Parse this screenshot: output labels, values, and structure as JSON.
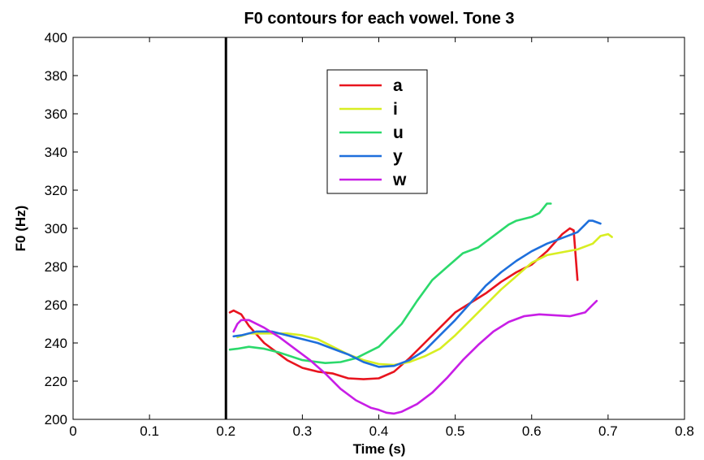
{
  "chart_data": {
    "type": "line",
    "title": "F0 contours for each vowel. Tone 3",
    "xlabel": "Time (s)",
    "ylabel": "F0 (Hz)",
    "xlim": [
      0,
      0.8
    ],
    "ylim": [
      200,
      400
    ],
    "xticks": [
      "0",
      "0.1",
      "0.2",
      "0.3",
      "0.4",
      "0.5",
      "0.6",
      "0.7",
      "0.8"
    ],
    "yticks": [
      "200",
      "220",
      "240",
      "260",
      "280",
      "300",
      "320",
      "340",
      "360",
      "380",
      "400"
    ],
    "grid": false,
    "legend_position": "upper-center",
    "vertical_line": {
      "x": 0.2,
      "color": "#000000"
    },
    "series": [
      {
        "name": "a",
        "color": "#e8141e",
        "x": [
          0.205,
          0.21,
          0.22,
          0.23,
          0.25,
          0.28,
          0.3,
          0.32,
          0.34,
          0.36,
          0.38,
          0.4,
          0.42,
          0.44,
          0.46,
          0.48,
          0.5,
          0.52,
          0.54,
          0.56,
          0.58,
          0.6,
          0.62,
          0.64,
          0.65,
          0.655,
          0.66
        ],
        "y": [
          256,
          257,
          255,
          249,
          240,
          231,
          227,
          225,
          224,
          221.5,
          221,
          221.5,
          225,
          232,
          240,
          248,
          256,
          261,
          266,
          272,
          277,
          281,
          288,
          297,
          300,
          299,
          273
        ]
      },
      {
        "name": "i",
        "color": "#d8ee22",
        "x": [
          0.215,
          0.23,
          0.25,
          0.28,
          0.3,
          0.32,
          0.34,
          0.36,
          0.38,
          0.4,
          0.42,
          0.44,
          0.46,
          0.48,
          0.5,
          0.52,
          0.54,
          0.56,
          0.58,
          0.6,
          0.62,
          0.64,
          0.66,
          0.68,
          0.69,
          0.7,
          0.705
        ],
        "y": [
          243,
          245,
          245,
          245,
          244,
          242,
          238,
          234,
          231,
          229,
          228.5,
          230,
          233,
          237,
          244,
          252,
          260,
          268,
          275,
          282,
          286,
          287.5,
          289,
          292,
          296,
          297,
          295.5
        ]
      },
      {
        "name": "u",
        "color": "#2bd96b",
        "x": [
          0.205,
          0.215,
          0.23,
          0.25,
          0.27,
          0.3,
          0.33,
          0.35,
          0.37,
          0.38,
          0.4,
          0.42,
          0.43,
          0.45,
          0.47,
          0.49,
          0.51,
          0.53,
          0.55,
          0.57,
          0.58,
          0.6,
          0.61,
          0.62,
          0.625
        ],
        "y": [
          236.5,
          237,
          238,
          237,
          235,
          231,
          229.5,
          230,
          232,
          234,
          238,
          246,
          250,
          262,
          273,
          280,
          287,
          290,
          296,
          302,
          304,
          306,
          308,
          313,
          313
        ]
      },
      {
        "name": "y",
        "color": "#1e6fdc",
        "x": [
          0.21,
          0.22,
          0.24,
          0.26,
          0.28,
          0.3,
          0.32,
          0.34,
          0.36,
          0.38,
          0.4,
          0.42,
          0.44,
          0.46,
          0.48,
          0.5,
          0.52,
          0.54,
          0.56,
          0.58,
          0.6,
          0.62,
          0.64,
          0.66,
          0.67,
          0.675,
          0.68,
          0.69
        ],
        "y": [
          243.5,
          244,
          246,
          246,
          244,
          242,
          240,
          237,
          234,
          230,
          227.5,
          228,
          231,
          236,
          244,
          252,
          261,
          270,
          277,
          283,
          288,
          292,
          295,
          298,
          302,
          304,
          304,
          302.5
        ]
      },
      {
        "name": "w",
        "color": "#c81ee6",
        "x": [
          0.21,
          0.215,
          0.22,
          0.23,
          0.25,
          0.27,
          0.29,
          0.31,
          0.33,
          0.35,
          0.37,
          0.39,
          0.4,
          0.41,
          0.42,
          0.43,
          0.45,
          0.47,
          0.49,
          0.51,
          0.53,
          0.55,
          0.57,
          0.59,
          0.61,
          0.63,
          0.65,
          0.67,
          0.68,
          0.685
        ],
        "y": [
          246,
          250,
          252,
          252,
          248,
          243,
          237,
          231,
          224,
          216,
          210,
          206,
          205,
          203.5,
          203,
          204,
          208,
          214,
          222,
          231,
          239,
          246,
          251,
          254,
          255,
          254.5,
          254,
          256,
          260,
          262
        ]
      }
    ]
  }
}
